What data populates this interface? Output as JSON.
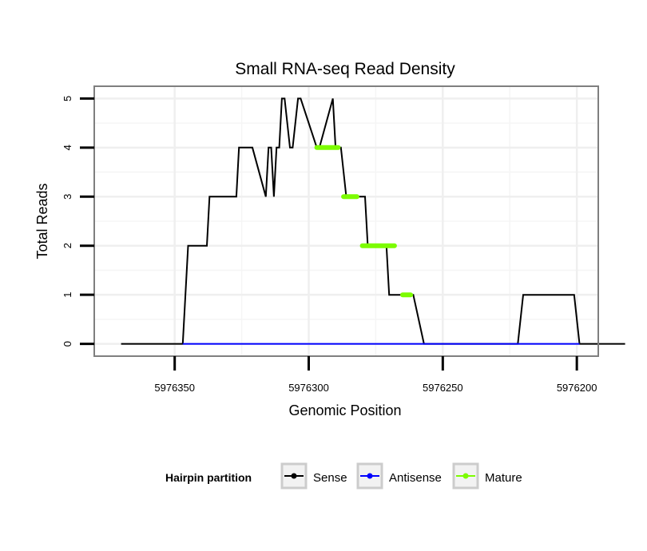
{
  "chart_data": {
    "type": "line",
    "title": "Small RNA-seq Read Density",
    "xlabel": "Genomic Position",
    "ylabel": "Total Reads",
    "x_reversed": true,
    "xlim": [
      5976380,
      5976192
    ],
    "ylim": [
      -0.25,
      5.25
    ],
    "x_ticks": [
      5976350,
      5976300,
      5976250,
      5976200
    ],
    "x_tick_labels": [
      "5976350",
      "5976300",
      "5976250",
      "5976200"
    ],
    "y_ticks": [
      0,
      1,
      2,
      3,
      4,
      5
    ],
    "y_tick_labels": [
      "0",
      "1",
      "2",
      "3",
      "4",
      "5"
    ],
    "grid": true,
    "legend": {
      "title": "Hairpin partition",
      "position": "bottom",
      "entries": [
        "Sense",
        "Antisense",
        "Mature"
      ]
    },
    "series": [
      {
        "name": "Sense",
        "color": "#000000",
        "x": [
          5976370,
          5976347,
          5976345,
          5976338,
          5976337,
          5976327,
          5976326,
          5976321,
          5976316,
          5976315,
          5976314,
          5976313,
          5976312,
          5976311,
          5976310,
          5976309,
          5976307,
          5976306,
          5976304,
          5976303,
          5976297,
          5976296,
          5976291,
          5976290,
          5976289,
          5976288,
          5976286,
          5976279,
          5976278,
          5976271,
          5976270,
          5976264,
          5976262,
          5976261,
          5976257,
          5976256,
          5976222,
          5976220,
          5976201,
          5976199,
          5976182
        ],
        "y": [
          0,
          0,
          2,
          2,
          3,
          3,
          4,
          4,
          3,
          4,
          4,
          3,
          4,
          4,
          5,
          5,
          4,
          4,
          5,
          5,
          4,
          4,
          5,
          4,
          4,
          4,
          3,
          3,
          2,
          2,
          1,
          1,
          1,
          1,
          0,
          0,
          0,
          1,
          1,
          0,
          0
        ]
      },
      {
        "name": "Antisense",
        "color": "#0000ff",
        "x": [
          5976347,
          5976199
        ],
        "y": [
          0,
          0
        ]
      },
      {
        "name": "Mature",
        "color": "#7cfc00",
        "segments": [
          {
            "x": [
              5976297,
              5976289
            ],
            "y": [
              4,
              4
            ]
          },
          {
            "x": [
              5976287,
              5976282
            ],
            "y": [
              3,
              3
            ]
          },
          {
            "x": [
              5976280,
              5976268
            ],
            "y": [
              2,
              2
            ]
          },
          {
            "x": [
              5976265,
              5976262
            ],
            "y": [
              1,
              1
            ]
          }
        ]
      }
    ]
  }
}
